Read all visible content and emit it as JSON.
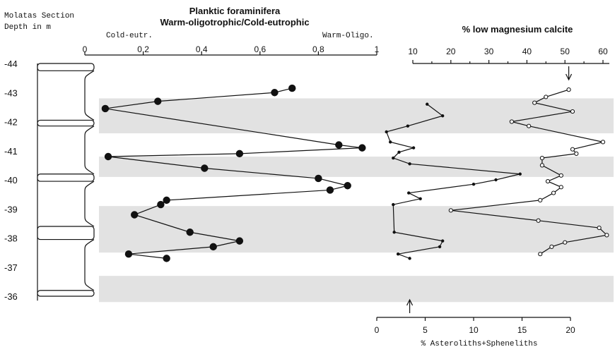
{
  "header": {
    "section_line1": "Molatas Section",
    "section_line2": "Depth in m",
    "plank_title1": "Planktic foraminifera",
    "plank_title2": "Warm-oligotrophic/Cold-eutrophic",
    "cold_label": "Cold-eutr.",
    "warm_label": "Warm-Oligo.",
    "lmc_title": "% low magnesium calcite",
    "ast_title": "% Asteroliths+Spheneliths"
  },
  "chart_data": {
    "type": "line",
    "y_axis": {
      "label": "Depth in m",
      "ticks": [
        "-44",
        "-43",
        "-42",
        "-41",
        "-40",
        "-39",
        "-38",
        "-37",
        "-36"
      ],
      "range": [
        -44,
        -35.8
      ]
    },
    "shaded_intervals": [
      [
        -42.8,
        -41.6
      ],
      [
        -40.8,
        -40.1
      ],
      [
        -39.1,
        -37.5
      ],
      [
        -36.7,
        -35.8
      ]
    ],
    "series": [
      {
        "name": "Warm-oligotrophic/Cold-eutrophic",
        "x_axis": {
          "ticks": [
            "0",
            "0,2",
            "0,4",
            "0,6",
            "0,8",
            "1"
          ],
          "range": [
            0,
            1
          ]
        },
        "marker": "filled-circle",
        "points": [
          {
            "x": 0.71,
            "y": -43.15
          },
          {
            "x": 0.65,
            "y": -43.0
          },
          {
            "x": 0.25,
            "y": -42.7
          },
          {
            "x": 0.07,
            "y": -42.45
          },
          {
            "x": 0.87,
            "y": -41.2
          },
          {
            "x": 0.95,
            "y": -41.1
          },
          {
            "x": 0.53,
            "y": -40.9
          },
          {
            "x": 0.08,
            "y": -40.8
          },
          {
            "x": 0.41,
            "y": -40.4
          },
          {
            "x": 0.8,
            "y": -40.05
          },
          {
            "x": 0.9,
            "y": -39.8
          },
          {
            "x": 0.84,
            "y": -39.65
          },
          {
            "x": 0.28,
            "y": -39.3
          },
          {
            "x": 0.26,
            "y": -39.15
          },
          {
            "x": 0.17,
            "y": -38.8
          },
          {
            "x": 0.36,
            "y": -38.2
          },
          {
            "x": 0.53,
            "y": -37.9
          },
          {
            "x": 0.44,
            "y": -37.7
          },
          {
            "x": 0.15,
            "y": -37.45
          },
          {
            "x": 0.28,
            "y": -37.3
          }
        ]
      },
      {
        "name": "% low magnesium calcite",
        "x_axis": {
          "ticks": [
            "10",
            "20",
            "30",
            "40",
            "50",
            "60"
          ],
          "range": [
            10,
            60
          ]
        },
        "marker": "open-circle",
        "points": [
          {
            "x": 51,
            "y": -43.1
          },
          {
            "x": 45,
            "y": -42.85
          },
          {
            "x": 42,
            "y": -42.65
          },
          {
            "x": 52,
            "y": -42.35
          },
          {
            "x": 36,
            "y": -42.0
          },
          {
            "x": 40.5,
            "y": -41.85
          },
          {
            "x": 60,
            "y": -41.3
          },
          {
            "x": 52,
            "y": -41.05
          },
          {
            "x": 53,
            "y": -40.9
          },
          {
            "x": 44,
            "y": -40.75
          },
          {
            "x": 44,
            "y": -40.5
          },
          {
            "x": 49,
            "y": -40.15
          },
          {
            "x": 45.5,
            "y": -39.95
          },
          {
            "x": 49,
            "y": -39.75
          },
          {
            "x": 47,
            "y": -39.55
          },
          {
            "x": 43.5,
            "y": -39.3
          },
          {
            "x": 20,
            "y": -38.95
          },
          {
            "x": 43,
            "y": -38.6
          },
          {
            "x": 59,
            "y": -38.35
          },
          {
            "x": 61,
            "y": -38.1
          },
          {
            "x": 50,
            "y": -37.85
          },
          {
            "x": 46.5,
            "y": -37.7
          },
          {
            "x": 43.5,
            "y": -37.45
          }
        ]
      },
      {
        "name": "% Asteroliths+Spheneliths",
        "x_axis": {
          "ticks": [
            "0",
            "5",
            "10",
            "15",
            "20"
          ],
          "range": [
            0,
            20
          ]
        },
        "marker": "small-dot",
        "points": [
          {
            "x": 5.2,
            "y": -42.6
          },
          {
            "x": 6.8,
            "y": -42.2
          },
          {
            "x": 3.2,
            "y": -41.85
          },
          {
            "x": 1.0,
            "y": -41.65
          },
          {
            "x": 1.4,
            "y": -41.3
          },
          {
            "x": 3.8,
            "y": -41.1
          },
          {
            "x": 2.3,
            "y": -40.95
          },
          {
            "x": 1.7,
            "y": -40.75
          },
          {
            "x": 3.4,
            "y": -40.55
          },
          {
            "x": 14.8,
            "y": -40.2
          },
          {
            "x": 12.3,
            "y": -40.0
          },
          {
            "x": 10.0,
            "y": -39.85
          },
          {
            "x": 3.3,
            "y": -39.55
          },
          {
            "x": 4.5,
            "y": -39.35
          },
          {
            "x": 1.7,
            "y": -39.15
          },
          {
            "x": 1.8,
            "y": -38.2
          },
          {
            "x": 6.8,
            "y": -37.9
          },
          {
            "x": 6.5,
            "y": -37.7
          },
          {
            "x": 2.2,
            "y": -37.45
          },
          {
            "x": 3.4,
            "y": -37.3
          }
        ]
      }
    ]
  }
}
